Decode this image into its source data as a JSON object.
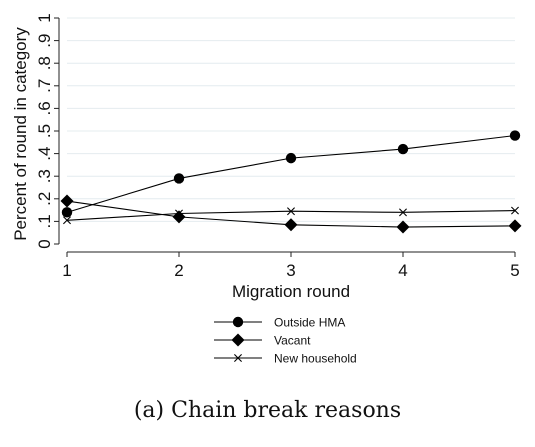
{
  "chart_data": {
    "type": "line",
    "x": [
      1,
      2,
      3,
      4,
      5
    ],
    "xlabel": "Migration round",
    "ylabel": "Percent of round in category",
    "xlim": [
      1,
      5
    ],
    "ylim": [
      0,
      1
    ],
    "xticks": [
      "1",
      "2",
      "3",
      "4",
      "5"
    ],
    "yticks": [
      "0",
      ".1",
      ".2",
      ".3",
      ".4",
      ".5",
      ".6",
      ".7",
      ".8",
      ".9",
      "1"
    ],
    "grid": "horizontal",
    "legend_position": "bottom",
    "series": [
      {
        "name": "Outside HMA",
        "marker": "circle",
        "values": [
          0.14,
          0.29,
          0.38,
          0.42,
          0.48
        ]
      },
      {
        "name": "Vacant",
        "marker": "diamond",
        "values": [
          0.19,
          0.12,
          0.085,
          0.075,
          0.08
        ]
      },
      {
        "name": "New household",
        "marker": "x",
        "values": [
          0.105,
          0.135,
          0.145,
          0.14,
          0.148
        ]
      }
    ]
  },
  "caption": "(a) Chain break reasons"
}
